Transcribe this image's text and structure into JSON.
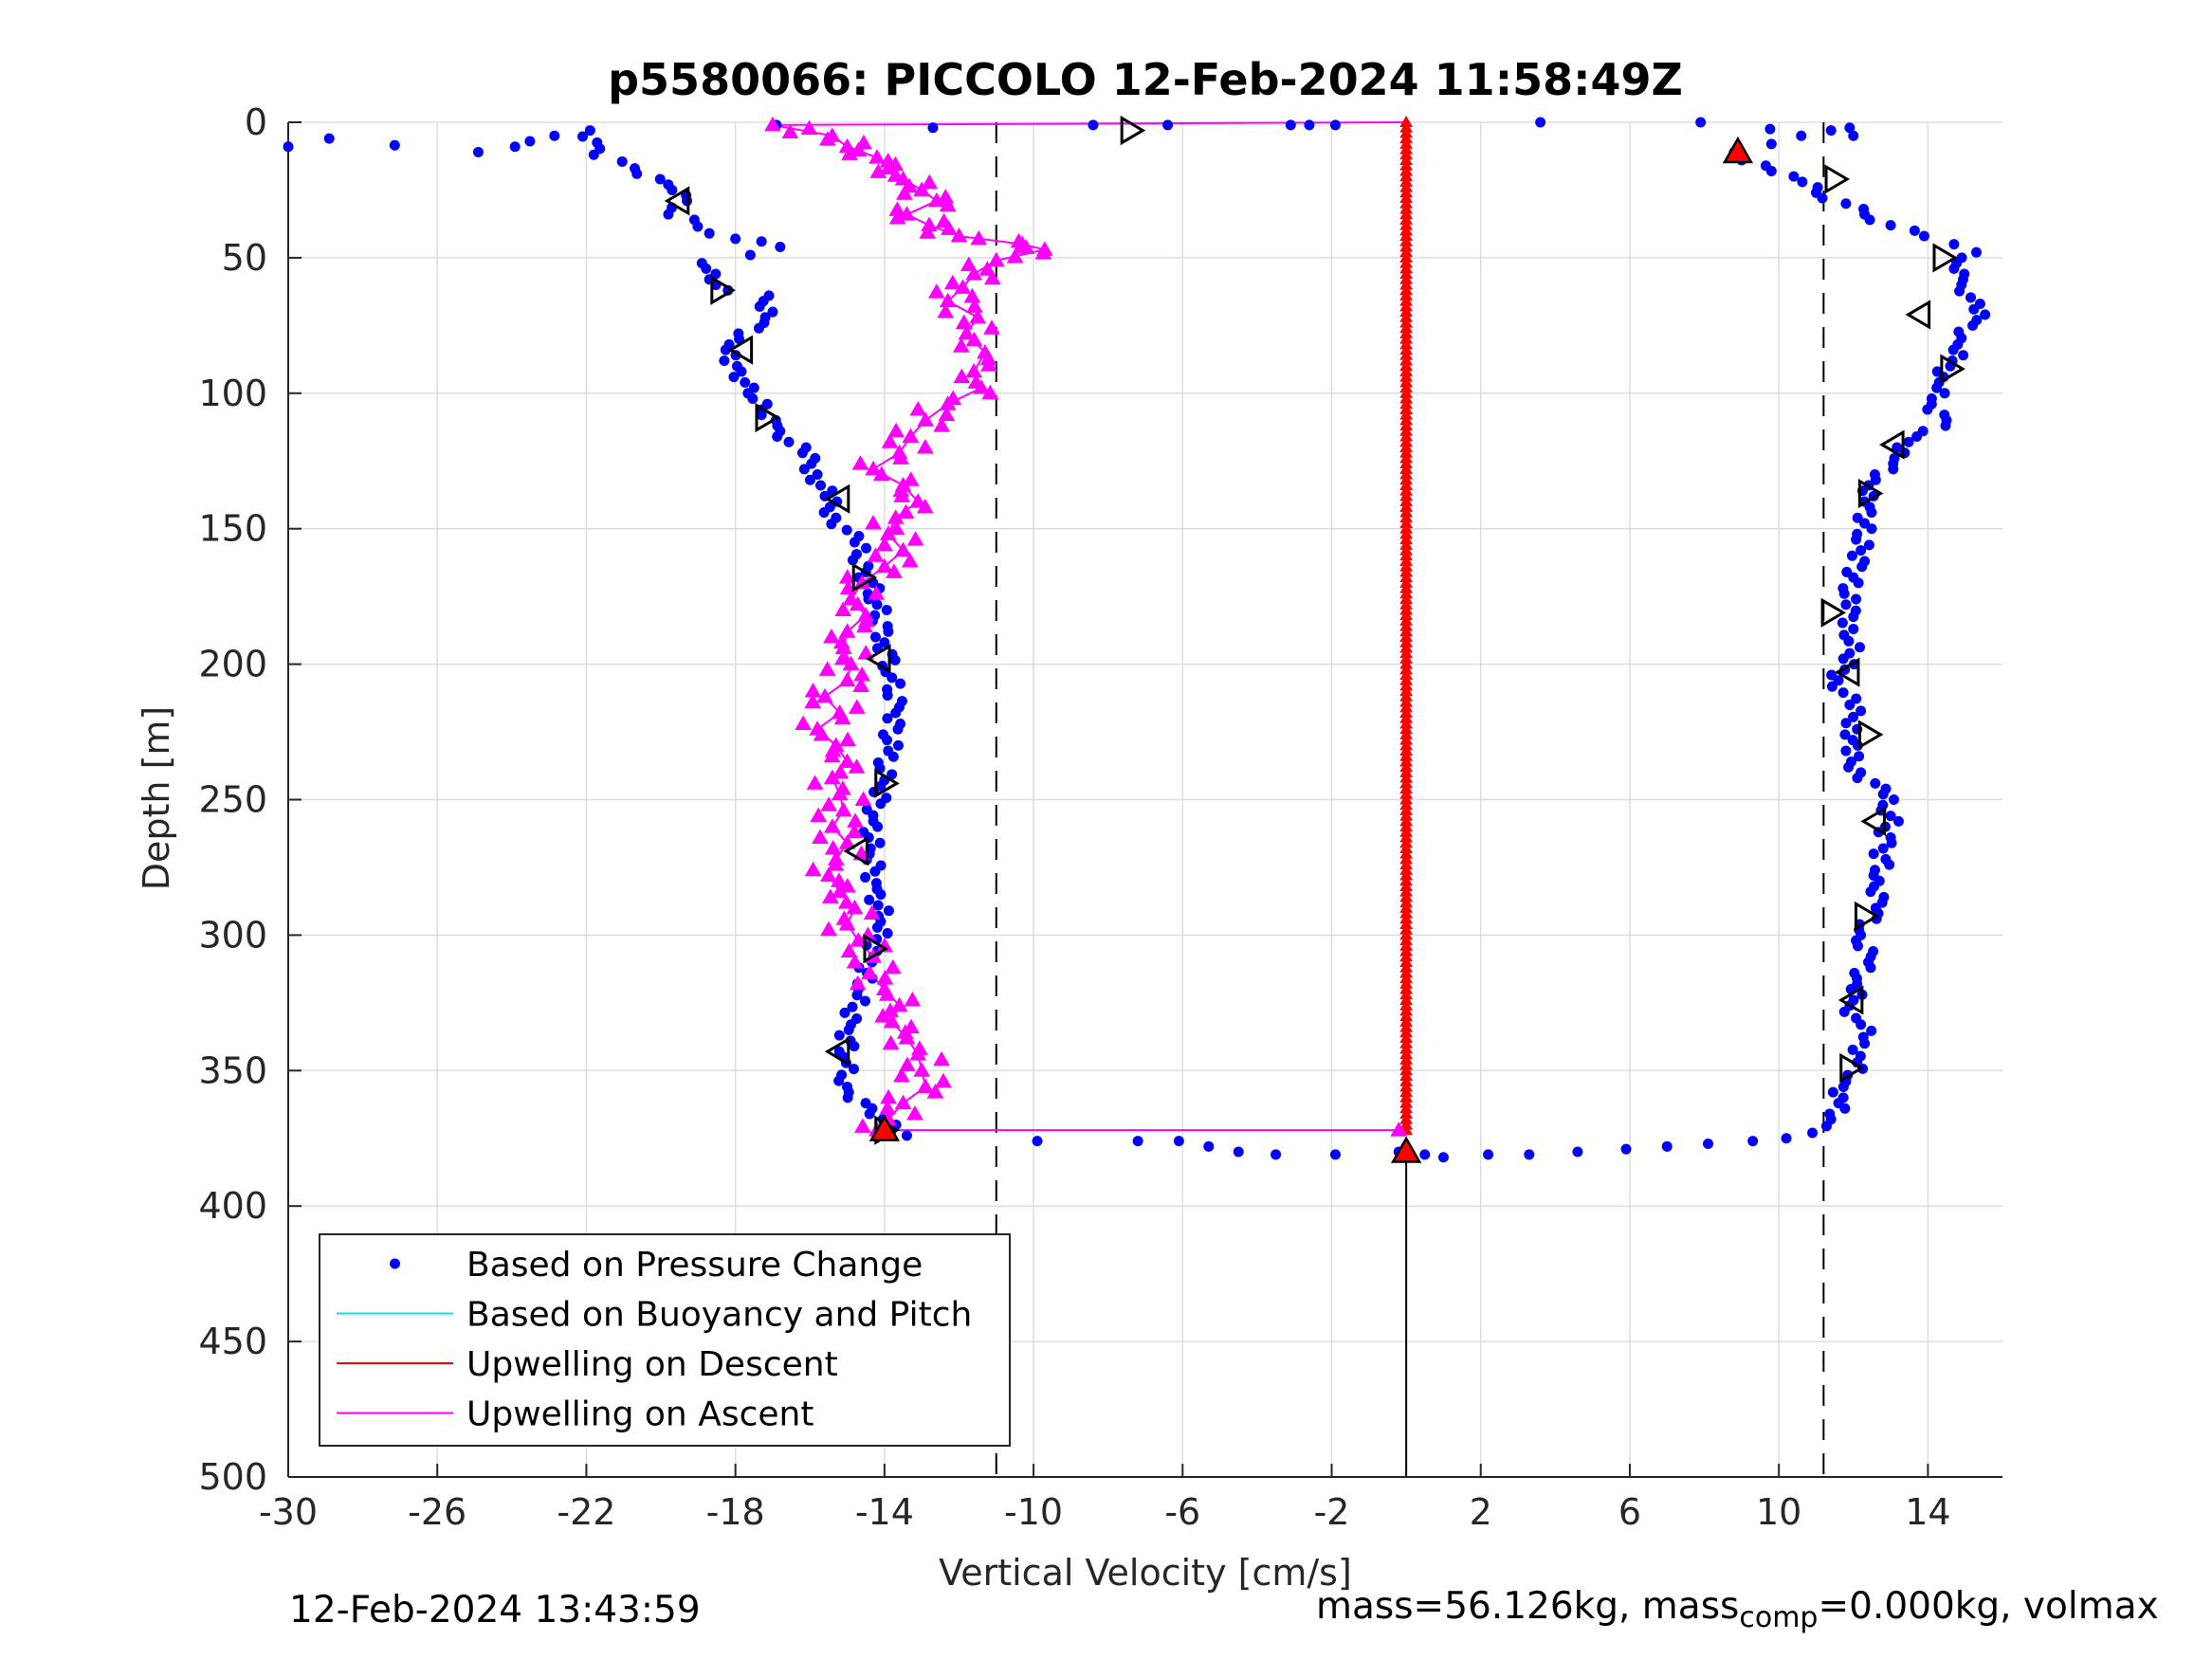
{
  "footer": {
    "timestamp": "12-Feb-2024 13:43:59",
    "mass_text": "mass=56.126kg, mass",
    "mass_sub": "comp",
    "mass_rest": "=0.000kg, volmax"
  },
  "colors": {
    "pressure": "#0000ff",
    "buoyancy": "#00e5ee",
    "descent": "#ff0000",
    "ascent": "#ff00ff",
    "grid": "#dddddd"
  },
  "chart_data": {
    "type": "scatter",
    "title": "p5580066: PICCOLO 12-Feb-2024 11:58:49Z",
    "xlabel": "Vertical Velocity [cm/s]",
    "ylabel": "Depth [m]",
    "xlim": [
      -30,
      16
    ],
    "ylim": [
      0,
      500
    ],
    "y_reversed": true,
    "grid": true,
    "xticks": [
      -30,
      -26,
      -22,
      -18,
      -14,
      -10,
      -6,
      -2,
      2,
      6,
      10,
      14
    ],
    "yticks": [
      0,
      50,
      100,
      150,
      200,
      250,
      300,
      350,
      400,
      450,
      500
    ],
    "legend": {
      "placement": "bottom-left",
      "entries": [
        {
          "label": "Based on Pressure Change",
          "style": "dot",
          "color": "#0000ff"
        },
        {
          "label": "Based on Buoyancy and Pitch",
          "style": "line",
          "color": "#00e5ee"
        },
        {
          "label": "Upwelling on Descent",
          "style": "line",
          "color": "#ff0000"
        },
        {
          "label": "Upwelling on Ascent",
          "style": "line",
          "color": "#ff00ff"
        }
      ]
    },
    "reference_lines": {
      "dashed_x": [
        -11.0,
        11.2
      ],
      "solid_x_below_max_depth": {
        "x": 0,
        "from_depth": 380,
        "to_depth": 500
      }
    },
    "series": [
      {
        "name": "Based on Pressure Change",
        "kind": "dots",
        "color": "#0000ff",
        "descent": [
          [
            -30,
            9
          ],
          [
            -28.9,
            6
          ],
          [
            -24.9,
            11
          ],
          [
            -21.9,
            3
          ],
          [
            -21.8,
            12
          ],
          [
            -20.7,
            17
          ],
          [
            -19.7,
            25
          ],
          [
            -19.3,
            29
          ],
          [
            -19.8,
            34
          ],
          [
            -19.1,
            36
          ],
          [
            -18.7,
            41
          ],
          [
            -18.0,
            43
          ],
          [
            -17.3,
            44
          ],
          [
            -16.8,
            46
          ],
          [
            -17.6,
            49
          ],
          [
            -18.9,
            52
          ],
          [
            -18.7,
            58
          ],
          [
            -18.2,
            62
          ],
          [
            -17.1,
            64
          ],
          [
            -17.2,
            72
          ],
          [
            -17.9,
            80
          ],
          [
            -18.3,
            88
          ],
          [
            -17.5,
            98
          ],
          [
            -17.3,
            108
          ],
          [
            -16.8,
            114
          ],
          [
            -16.2,
            122
          ],
          [
            -15.8,
            130
          ],
          [
            -15.6,
            138
          ],
          [
            -15.3,
            146
          ],
          [
            -14.8,
            155
          ],
          [
            -14.5,
            166
          ],
          [
            -14.2,
            178
          ],
          [
            -14.0,
            192
          ],
          [
            -13.8,
            205
          ],
          [
            -13.7,
            218
          ],
          [
            -13.9,
            232
          ],
          [
            -14.1,
            245
          ],
          [
            -14.3,
            258
          ],
          [
            -14.4,
            270
          ],
          [
            -14.2,
            283
          ],
          [
            -14.1,
            295
          ],
          [
            -14.3,
            308
          ],
          [
            -14.7,
            320
          ],
          [
            -14.9,
            333
          ],
          [
            -15.1,
            345
          ],
          [
            -15.0,
            356
          ],
          [
            -14.4,
            366
          ],
          [
            -13.4,
            374
          ],
          [
            -9.9,
            376
          ],
          [
            -7.2,
            376
          ],
          [
            -6.1,
            376
          ],
          [
            -5.3,
            378
          ],
          [
            -4.5,
            380
          ],
          [
            -3.5,
            381
          ],
          [
            -1.9,
            381
          ],
          [
            -0.2,
            380
          ],
          [
            0.5,
            381
          ],
          [
            1.0,
            382
          ],
          [
            2.2,
            381
          ],
          [
            3.3,
            381
          ],
          [
            4.6,
            380
          ],
          [
            5.9,
            379
          ],
          [
            7.0,
            378
          ],
          [
            8.1,
            377
          ],
          [
            9.3,
            376
          ],
          [
            10.2,
            375
          ],
          [
            10.9,
            373
          ],
          [
            11.4,
            368
          ],
          [
            11.6,
            362
          ],
          [
            11.8,
            354
          ],
          [
            12.1,
            347
          ],
          [
            12.3,
            340
          ],
          [
            12.2,
            333
          ],
          [
            11.9,
            326
          ],
          [
            12.1,
            318
          ],
          [
            12.4,
            310
          ],
          [
            12.2,
            300
          ],
          [
            12.6,
            290
          ],
          [
            12.7,
            280
          ],
          [
            12.8,
            268
          ],
          [
            13.0,
            256
          ],
          [
            12.8,
            248
          ],
          [
            12.2,
            240
          ],
          [
            11.8,
            232
          ],
          [
            12.1,
            224
          ],
          [
            11.9,
            215
          ],
          [
            11.6,
            206
          ],
          [
            11.9,
            196
          ],
          [
            12.0,
            187
          ],
          [
            11.8,
            178
          ],
          [
            12.0,
            168
          ],
          [
            12.2,
            158
          ],
          [
            12.3,
            148
          ],
          [
            12.3,
            140
          ],
          [
            12.6,
            132
          ],
          [
            13.1,
            124
          ],
          [
            13.7,
            116
          ],
          [
            14.5,
            110
          ],
          [
            14.1,
            104
          ],
          [
            14.3,
            96
          ],
          [
            14.6,
            90
          ],
          [
            14.8,
            82
          ],
          [
            15.2,
            75
          ],
          [
            15.4,
            67
          ],
          [
            14.9,
            60
          ],
          [
            14.7,
            54
          ],
          [
            15.3,
            48
          ],
          [
            14.7,
            45
          ],
          [
            13.9,
            42
          ],
          [
            13.0,
            38
          ],
          [
            12.3,
            34
          ],
          [
            11.8,
            30
          ],
          [
            11.0,
            26
          ],
          [
            10.4,
            20
          ],
          [
            9.8,
            18
          ],
          [
            9.0,
            14
          ],
          [
            8.8,
            11
          ],
          [
            9.8,
            8
          ],
          [
            10.6,
            5
          ],
          [
            11.4,
            3
          ],
          [
            11.9,
            2
          ],
          [
            12.0,
            5
          ],
          [
            7.9,
            0
          ],
          [
            3.6,
            0
          ],
          [
            -1.9,
            1
          ],
          [
            -2.6,
            1
          ],
          [
            -3.1,
            1
          ],
          [
            -6.4,
            1
          ],
          [
            -8.4,
            1
          ],
          [
            -12.7,
            2
          ],
          [
            -16.9,
            1
          ]
        ]
      },
      {
        "name": "Upwelling on Descent",
        "kind": "triangles",
        "color": "#ff0000",
        "points": [
          [
            0,
            0
          ],
          [
            0,
            50
          ],
          [
            0,
            100
          ],
          [
            0,
            150
          ],
          [
            0,
            200
          ],
          [
            0,
            250
          ],
          [
            0,
            300
          ],
          [
            0,
            350
          ],
          [
            0,
            372
          ]
        ]
      },
      {
        "name": "Upwelling on Ascent",
        "kind": "triangles",
        "color": "#ff00ff",
        "points": [
          [
            -17.0,
            1
          ],
          [
            -15.4,
            5
          ],
          [
            -15.0,
            9
          ],
          [
            -14.2,
            13
          ],
          [
            -13.9,
            17
          ],
          [
            -13.5,
            21
          ],
          [
            -13.0,
            25
          ],
          [
            -12.6,
            29
          ],
          [
            -13.4,
            34
          ],
          [
            -12.8,
            38
          ],
          [
            -12.0,
            42
          ],
          [
            -10.3,
            45
          ],
          [
            -9.7,
            47
          ],
          [
            -11.0,
            51
          ],
          [
            -11.6,
            56
          ],
          [
            -11.9,
            61
          ],
          [
            -12.3,
            66
          ],
          [
            -11.5,
            72
          ],
          [
            -11.8,
            78
          ],
          [
            -11.3,
            85
          ],
          [
            -11.6,
            92
          ],
          [
            -11.4,
            98
          ],
          [
            -12.3,
            104
          ],
          [
            -12.9,
            110
          ],
          [
            -13.3,
            116
          ],
          [
            -13.6,
            122
          ],
          [
            -14.3,
            128
          ],
          [
            -13.5,
            134
          ],
          [
            -13.1,
            140
          ],
          [
            -13.7,
            146
          ],
          [
            -13.9,
            152
          ],
          [
            -13.5,
            158
          ],
          [
            -14.0,
            164
          ],
          [
            -14.6,
            170
          ],
          [
            -14.9,
            176
          ],
          [
            -14.5,
            182
          ],
          [
            -15.0,
            188
          ],
          [
            -15.1,
            194
          ],
          [
            -14.9,
            200
          ],
          [
            -15.0,
            206
          ],
          [
            -15.6,
            212
          ],
          [
            -15.2,
            218
          ],
          [
            -15.8,
            224
          ],
          [
            -15.3,
            230
          ],
          [
            -15.0,
            236
          ],
          [
            -15.4,
            242
          ],
          [
            -15.2,
            248
          ],
          [
            -15.1,
            254
          ],
          [
            -15.4,
            260
          ],
          [
            -15.0,
            266
          ],
          [
            -15.3,
            272
          ],
          [
            -15.5,
            278
          ],
          [
            -15.2,
            284
          ],
          [
            -14.8,
            290
          ],
          [
            -15.0,
            296
          ],
          [
            -14.7,
            302
          ],
          [
            -14.3,
            308
          ],
          [
            -14.4,
            314
          ],
          [
            -14.0,
            320
          ],
          [
            -13.6,
            326
          ],
          [
            -13.8,
            332
          ],
          [
            -13.4,
            338
          ],
          [
            -13.1,
            344
          ],
          [
            -13.0,
            350
          ],
          [
            -12.9,
            356
          ],
          [
            -13.5,
            362
          ],
          [
            -13.9,
            368
          ],
          [
            -14.2,
            372
          ],
          [
            -0.2,
            372
          ]
        ]
      },
      {
        "name": "Sample Markers",
        "kind": "black-triangles",
        "points": [
          [
            -7.4,
            3,
            "r"
          ],
          [
            -19.5,
            29,
            "l"
          ],
          [
            -18.4,
            62,
            "r"
          ],
          [
            -17.8,
            84,
            "l"
          ],
          [
            -17.2,
            109,
            "r"
          ],
          [
            -15.2,
            139,
            "l"
          ],
          [
            -14.6,
            168,
            "r"
          ],
          [
            -14.1,
            198,
            "l"
          ],
          [
            -14.0,
            244,
            "r"
          ],
          [
            -14.7,
            269,
            "l"
          ],
          [
            -14.3,
            305,
            "r"
          ],
          [
            -15.2,
            343,
            "l"
          ],
          [
            -14.0,
            372,
            "r"
          ],
          [
            14.4,
            50,
            "r"
          ],
          [
            13.8,
            71,
            "l"
          ],
          [
            14.6,
            91,
            "r"
          ],
          [
            13.1,
            119,
            "l"
          ],
          [
            12.4,
            137,
            "r"
          ],
          [
            11.4,
            181,
            "r"
          ],
          [
            11.9,
            203,
            "l"
          ],
          [
            12.4,
            226,
            "r"
          ],
          [
            12.6,
            258,
            "l"
          ],
          [
            12.3,
            293,
            "r"
          ],
          [
            12.0,
            324,
            "l"
          ],
          [
            11.9,
            349,
            "r"
          ],
          [
            11.5,
            21,
            "r"
          ]
        ]
      },
      {
        "name": "Red Surface/Apogee Markers",
        "kind": "red-triangles",
        "points": [
          [
            8.9,
            11
          ],
          [
            -14.0,
            372
          ],
          [
            0,
            380
          ]
        ]
      }
    ]
  }
}
